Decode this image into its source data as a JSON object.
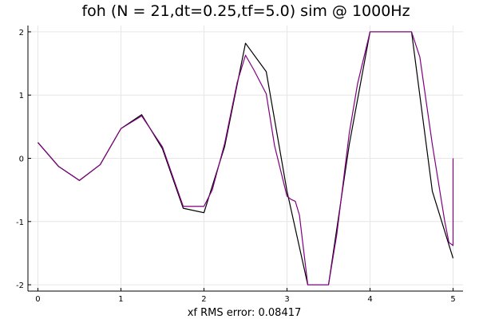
{
  "chart_data": {
    "type": "line",
    "title": "foh (N = 21,dt=0.25,tf=5.0) sim @ 1000Hz",
    "xlabel": "xf RMS error: 0.08417",
    "ylabel": "",
    "xlim": [
      -0.12,
      5.12
    ],
    "ylim": [
      -2.1,
      2.1
    ],
    "xticks": [
      0,
      1,
      2,
      3,
      4,
      5
    ],
    "yticks": [
      -2,
      -1,
      0,
      1,
      2
    ],
    "grid": true,
    "legend": "none",
    "series": [
      {
        "color": "#000000",
        "x": [
          0,
          0.25,
          0.5,
          0.75,
          1.0,
          1.25,
          1.5,
          1.75,
          2.0,
          2.25,
          2.5,
          2.75,
          3.0,
          3.25,
          3.5,
          3.75,
          4.0,
          4.25,
          4.5,
          4.75,
          5.0
        ],
        "y": [
          0.25,
          -0.13,
          -0.35,
          -0.1,
          0.47,
          0.69,
          0.15,
          -0.79,
          -0.86,
          0.19,
          1.82,
          1.37,
          -0.52,
          -2.0,
          -2.0,
          0.22,
          2.0,
          2.0,
          2.0,
          -0.52,
          -1.58
        ]
      },
      {
        "color": "#800080",
        "x": [
          0,
          0.25,
          0.5,
          0.75,
          1.0,
          1.25,
          1.5,
          1.75,
          2.0,
          2.1,
          2.25,
          2.4,
          2.5,
          2.6,
          2.75,
          2.85,
          3.0,
          3.05,
          3.1,
          3.15,
          3.25,
          3.5,
          3.6,
          3.75,
          3.85,
          4.0,
          4.25,
          4.5,
          4.6,
          4.75,
          4.9,
          4.95,
          5.0,
          5.0
        ],
        "y": [
          0.25,
          -0.13,
          -0.35,
          -0.1,
          0.47,
          0.67,
          0.18,
          -0.76,
          -0.76,
          -0.5,
          0.24,
          1.2,
          1.63,
          1.4,
          1.02,
          0.2,
          -0.6,
          -0.65,
          -0.68,
          -0.9,
          -2.0,
          -2.0,
          -1.2,
          0.4,
          1.18,
          2.0,
          2.0,
          2.0,
          1.6,
          0.22,
          -1.0,
          -1.33,
          -1.38,
          0.0
        ]
      }
    ]
  }
}
